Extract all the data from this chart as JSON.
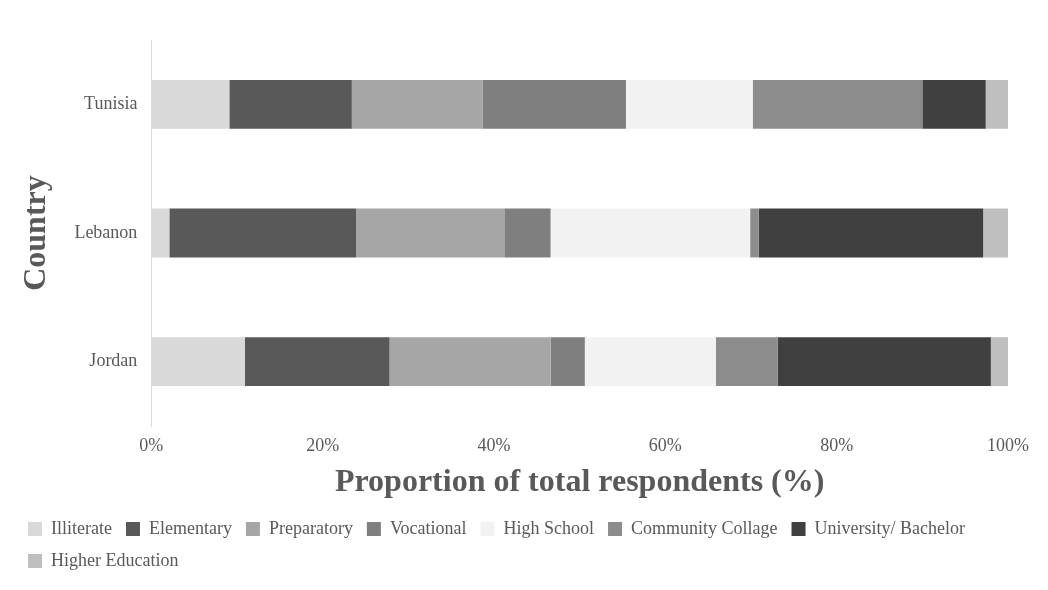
{
  "chart_data": {
    "type": "bar",
    "orientation": "horizontal",
    "stacked": true,
    "xlabel": "Proportion of total respondents (%)",
    "ylabel": "Country",
    "categories": [
      "Tunisia",
      "Lebanon",
      "Jordan"
    ],
    "series": [
      {
        "name": "Illiterate",
        "color": "#d9d9d9",
        "values": [
          9.1,
          2.1,
          10.9
        ]
      },
      {
        "name": "Elementary",
        "color": "#595959",
        "values": [
          14.3,
          21.8,
          16.9
        ]
      },
      {
        "name": "Preparatory",
        "color": "#a6a6a6",
        "values": [
          15.3,
          17.3,
          18.8
        ]
      },
      {
        "name": "Vocational",
        "color": "#7f7f7f",
        "values": [
          16.7,
          5.4,
          4.0
        ]
      },
      {
        "name": "High School",
        "color": "#f2f2f2",
        "values": [
          14.8,
          23.3,
          15.3
        ]
      },
      {
        "name": "Community Collage",
        "color": "#8c8c8c",
        "values": [
          19.8,
          1.0,
          7.2
        ]
      },
      {
        "name": "University/ Bachelor",
        "color": "#404040",
        "values": [
          7.4,
          26.2,
          24.9
        ]
      },
      {
        "name": "Higher Education",
        "color": "#bfbfbf",
        "values": [
          2.6,
          2.9,
          2.0
        ]
      }
    ],
    "xlim": [
      0,
      100
    ],
    "xticks": [
      {
        "value": 0,
        "label": "0%"
      },
      {
        "value": 20,
        "label": "20%"
      },
      {
        "value": 40,
        "label": "40%"
      },
      {
        "value": 60,
        "label": "60%"
      },
      {
        "value": 80,
        "label": "80%"
      },
      {
        "value": 100,
        "label": "100%"
      }
    ],
    "grid": false,
    "legend": "bottom"
  }
}
